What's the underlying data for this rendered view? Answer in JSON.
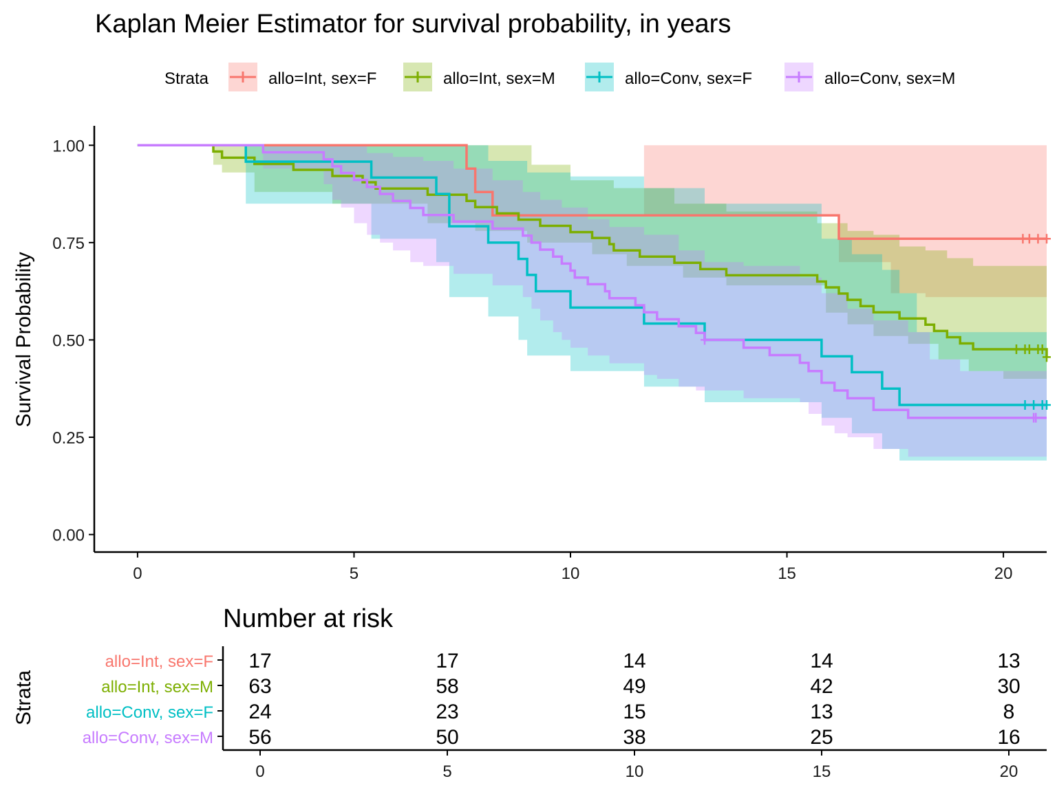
{
  "chart_data": {
    "type": "line",
    "title": "Kaplan Meier Estimator for survival probability, in years",
    "xlabel": "",
    "ylabel": "Survival Probability",
    "xlim": [
      -1,
      21
    ],
    "ylim": [
      -0.045,
      1.05
    ],
    "x_ticks": [
      "0",
      "5",
      "10",
      "15",
      "20"
    ],
    "y_ticks": [
      "0.00",
      "0.25",
      "0.50",
      "0.75",
      "1.00"
    ],
    "legend": {
      "title": "Strata",
      "position": "top",
      "entries": [
        "allo=Int, sex=F",
        "allo=Int, sex=M",
        "allo=Conv, sex=F",
        "allo=Conv, sex=M"
      ]
    },
    "series": [
      {
        "name": "allo=Int, sex=F",
        "color": "#F8766D",
        "steps": [
          [
            0,
            1.0
          ],
          [
            7.6,
            0.94
          ],
          [
            7.8,
            0.88
          ],
          [
            8.2,
            0.82
          ],
          [
            16.2,
            0.76
          ]
        ],
        "lower": [
          [
            0,
            1.0
          ],
          [
            7.6,
            1.0
          ],
          [
            11.7,
            0.82
          ],
          [
            16.2,
            0.7
          ],
          [
            17.4,
            0.62
          ],
          [
            18.2,
            0.61
          ],
          [
            21,
            0.61
          ]
        ],
        "upper": [
          [
            0,
            1.0
          ],
          [
            7.6,
            1.0
          ],
          [
            21,
            1.0
          ]
        ],
        "censor": [
          20.45,
          20.6,
          20.8,
          21.0
        ]
      },
      {
        "name": "allo=Int, sex=M",
        "color": "#7CAE00",
        "steps": [
          [
            0,
            1.0
          ],
          [
            1.75,
            0.984
          ],
          [
            1.95,
            0.968
          ],
          [
            2.7,
            0.952
          ],
          [
            3.6,
            0.937
          ],
          [
            4.5,
            0.921
          ],
          [
            5.2,
            0.905
          ],
          [
            5.5,
            0.889
          ],
          [
            6.7,
            0.873
          ],
          [
            7.6,
            0.857
          ],
          [
            7.8,
            0.841
          ],
          [
            8.3,
            0.825
          ],
          [
            8.8,
            0.809
          ],
          [
            9.3,
            0.793
          ],
          [
            10.0,
            0.777
          ],
          [
            10.5,
            0.762
          ],
          [
            10.9,
            0.746
          ],
          [
            11.0,
            0.73
          ],
          [
            11.6,
            0.714
          ],
          [
            12.4,
            0.698
          ],
          [
            13.0,
            0.682
          ],
          [
            13.6,
            0.666
          ],
          [
            15.7,
            0.65
          ],
          [
            15.9,
            0.635
          ],
          [
            16.2,
            0.619
          ],
          [
            16.4,
            0.603
          ],
          [
            16.7,
            0.587
          ],
          [
            17.0,
            0.571
          ],
          [
            17.6,
            0.555
          ],
          [
            18.2,
            0.539
          ],
          [
            18.4,
            0.523
          ],
          [
            18.7,
            0.507
          ],
          [
            19.0,
            0.491
          ],
          [
            19.3,
            0.476
          ],
          [
            21,
            0.456
          ]
        ],
        "lower": [
          [
            0,
            1.0
          ],
          [
            1.75,
            0.95
          ],
          [
            1.95,
            0.93
          ],
          [
            2.7,
            0.88
          ],
          [
            4.5,
            0.85
          ],
          [
            6.7,
            0.8
          ],
          [
            7.8,
            0.78
          ],
          [
            9.0,
            0.75
          ],
          [
            10.5,
            0.72
          ],
          [
            11.3,
            0.69
          ],
          [
            12.6,
            0.66
          ],
          [
            13.6,
            0.64
          ],
          [
            15.9,
            0.57
          ],
          [
            16.4,
            0.54
          ],
          [
            17.0,
            0.51
          ],
          [
            17.8,
            0.49
          ],
          [
            18.5,
            0.45
          ],
          [
            19.2,
            0.42
          ],
          [
            20.0,
            0.4
          ],
          [
            21,
            0.38
          ]
        ],
        "upper": [
          [
            0,
            1.0
          ],
          [
            1.75,
            1.0
          ],
          [
            9.1,
            0.95
          ],
          [
            10.0,
            0.91
          ],
          [
            11.0,
            0.89
          ],
          [
            12.4,
            0.85
          ],
          [
            13.6,
            0.83
          ],
          [
            15.7,
            0.8
          ],
          [
            16.4,
            0.78
          ],
          [
            17.0,
            0.77
          ],
          [
            17.6,
            0.74
          ],
          [
            18.2,
            0.73
          ],
          [
            18.7,
            0.71
          ],
          [
            19.3,
            0.69
          ],
          [
            21,
            0.59
          ]
        ],
        "censor": [
          20.3,
          20.5,
          20.6,
          20.8,
          20.9,
          21.0
        ]
      },
      {
        "name": "allo=Conv, sex=F",
        "color": "#00BFC4",
        "steps": [
          [
            0,
            1.0
          ],
          [
            2.5,
            0.958
          ],
          [
            5.4,
            0.917
          ],
          [
            6.9,
            0.875
          ],
          [
            7.2,
            0.792
          ],
          [
            8.1,
            0.75
          ],
          [
            8.8,
            0.708
          ],
          [
            9.0,
            0.667
          ],
          [
            9.2,
            0.625
          ],
          [
            10.0,
            0.583
          ],
          [
            11.7,
            0.542
          ],
          [
            13.1,
            0.5
          ],
          [
            15.8,
            0.458
          ],
          [
            16.5,
            0.417
          ],
          [
            17.2,
            0.375
          ],
          [
            17.6,
            0.333
          ]
        ],
        "lower": [
          [
            0,
            1.0
          ],
          [
            2.5,
            0.85
          ],
          [
            5.4,
            0.76
          ],
          [
            6.9,
            0.7
          ],
          [
            7.2,
            0.61
          ],
          [
            8.1,
            0.56
          ],
          [
            8.8,
            0.5
          ],
          [
            9.0,
            0.46
          ],
          [
            10.0,
            0.42
          ],
          [
            11.7,
            0.38
          ],
          [
            13.1,
            0.34
          ],
          [
            15.8,
            0.3
          ],
          [
            16.5,
            0.26
          ],
          [
            17.2,
            0.22
          ],
          [
            17.6,
            0.19
          ],
          [
            21,
            0.19
          ]
        ],
        "upper": [
          [
            0,
            1.0
          ],
          [
            3.0,
            1.0
          ],
          [
            5.4,
            1.0
          ],
          [
            6.9,
            1.0
          ],
          [
            7.2,
            1.0
          ],
          [
            8.1,
            0.96
          ],
          [
            9.0,
            0.93
          ],
          [
            10.0,
            0.92
          ],
          [
            11.7,
            0.89
          ],
          [
            13.1,
            0.85
          ],
          [
            15.8,
            0.76
          ],
          [
            16.5,
            0.72
          ],
          [
            17.2,
            0.68
          ],
          [
            17.6,
            0.62
          ],
          [
            18.0,
            0.52
          ],
          [
            21,
            0.52
          ]
        ],
        "censor": [
          20.5,
          20.7,
          20.9,
          21.0
        ]
      },
      {
        "name": "allo=Conv, sex=M",
        "color": "#C77CFF",
        "steps": [
          [
            0,
            1.0
          ],
          [
            2.9,
            0.982
          ],
          [
            4.3,
            0.964
          ],
          [
            4.5,
            0.946
          ],
          [
            4.7,
            0.929
          ],
          [
            5.0,
            0.911
          ],
          [
            5.3,
            0.893
          ],
          [
            5.6,
            0.875
          ],
          [
            5.9,
            0.857
          ],
          [
            6.3,
            0.839
          ],
          [
            6.6,
            0.821
          ],
          [
            7.3,
            0.804
          ],
          [
            8.2,
            0.786
          ],
          [
            8.9,
            0.768
          ],
          [
            9.1,
            0.75
          ],
          [
            9.3,
            0.732
          ],
          [
            9.6,
            0.714
          ],
          [
            9.8,
            0.696
          ],
          [
            10.0,
            0.678
          ],
          [
            10.1,
            0.66
          ],
          [
            10.4,
            0.643
          ],
          [
            10.8,
            0.625
          ],
          [
            10.9,
            0.607
          ],
          [
            11.5,
            0.589
          ],
          [
            11.7,
            0.571
          ],
          [
            12.0,
            0.553
          ],
          [
            12.5,
            0.535
          ],
          [
            12.9,
            0.518
          ],
          [
            13.1,
            0.5
          ],
          [
            14.0,
            0.48
          ],
          [
            14.6,
            0.461
          ],
          [
            15.3,
            0.441
          ],
          [
            15.5,
            0.42
          ],
          [
            15.8,
            0.39
          ],
          [
            16.1,
            0.37
          ],
          [
            16.4,
            0.35
          ],
          [
            17.0,
            0.32
          ],
          [
            17.8,
            0.3
          ]
        ],
        "lower": [
          [
            0,
            1.0
          ],
          [
            2.9,
            0.94
          ],
          [
            4.3,
            0.9
          ],
          [
            4.5,
            0.86
          ],
          [
            4.7,
            0.84
          ],
          [
            5.0,
            0.8
          ],
          [
            5.3,
            0.77
          ],
          [
            5.6,
            0.75
          ],
          [
            5.9,
            0.73
          ],
          [
            6.3,
            0.7
          ],
          [
            6.6,
            0.69
          ],
          [
            7.3,
            0.67
          ],
          [
            8.2,
            0.64
          ],
          [
            8.9,
            0.61
          ],
          [
            9.1,
            0.58
          ],
          [
            9.3,
            0.55
          ],
          [
            9.6,
            0.52
          ],
          [
            9.8,
            0.5
          ],
          [
            10.0,
            0.48
          ],
          [
            10.4,
            0.46
          ],
          [
            10.9,
            0.44
          ],
          [
            11.7,
            0.41
          ],
          [
            12.0,
            0.4
          ],
          [
            12.5,
            0.38
          ],
          [
            12.9,
            0.37
          ],
          [
            14.0,
            0.35
          ],
          [
            15.3,
            0.34
          ],
          [
            15.5,
            0.31
          ],
          [
            15.8,
            0.28
          ],
          [
            16.1,
            0.26
          ],
          [
            16.4,
            0.25
          ],
          [
            17.0,
            0.22
          ],
          [
            17.8,
            0.2
          ],
          [
            21,
            0.2
          ]
        ],
        "upper": [
          [
            0,
            1.0
          ],
          [
            4.3,
            1.0
          ],
          [
            5.3,
            0.98
          ],
          [
            5.9,
            0.97
          ],
          [
            6.6,
            0.96
          ],
          [
            7.3,
            0.94
          ],
          [
            8.2,
            0.91
          ],
          [
            8.9,
            0.88
          ],
          [
            9.3,
            0.86
          ],
          [
            9.8,
            0.84
          ],
          [
            10.4,
            0.81
          ],
          [
            10.9,
            0.79
          ],
          [
            11.7,
            0.77
          ],
          [
            12.5,
            0.73
          ],
          [
            13.1,
            0.7
          ],
          [
            14.0,
            0.69
          ],
          [
            15.3,
            0.66
          ],
          [
            15.8,
            0.62
          ],
          [
            16.4,
            0.58
          ],
          [
            17.0,
            0.55
          ],
          [
            17.8,
            0.52
          ],
          [
            18.3,
            0.45
          ],
          [
            19.0,
            0.42
          ],
          [
            21,
            0.42
          ]
        ],
        "censor": [
          13.1,
          20.7,
          20.75
        ]
      }
    ],
    "risk_table": {
      "title": "Number at risk",
      "ylabel": "Strata",
      "x_ticks": [
        "0",
        "5",
        "10",
        "15",
        "20"
      ],
      "rows": [
        {
          "name": "allo=Int, sex=F",
          "color": "#F8766D",
          "values": [
            "17",
            "17",
            "14",
            "14",
            "13"
          ]
        },
        {
          "name": "allo=Int, sex=M",
          "color": "#7CAE00",
          "values": [
            "63",
            "58",
            "49",
            "42",
            "30"
          ]
        },
        {
          "name": "allo=Conv, sex=F",
          "color": "#00BFC4",
          "values": [
            "24",
            "23",
            "15",
            "13",
            "8"
          ]
        },
        {
          "name": "allo=Conv, sex=M",
          "color": "#C77CFF",
          "values": [
            "56",
            "50",
            "38",
            "25",
            "16"
          ]
        }
      ]
    }
  }
}
